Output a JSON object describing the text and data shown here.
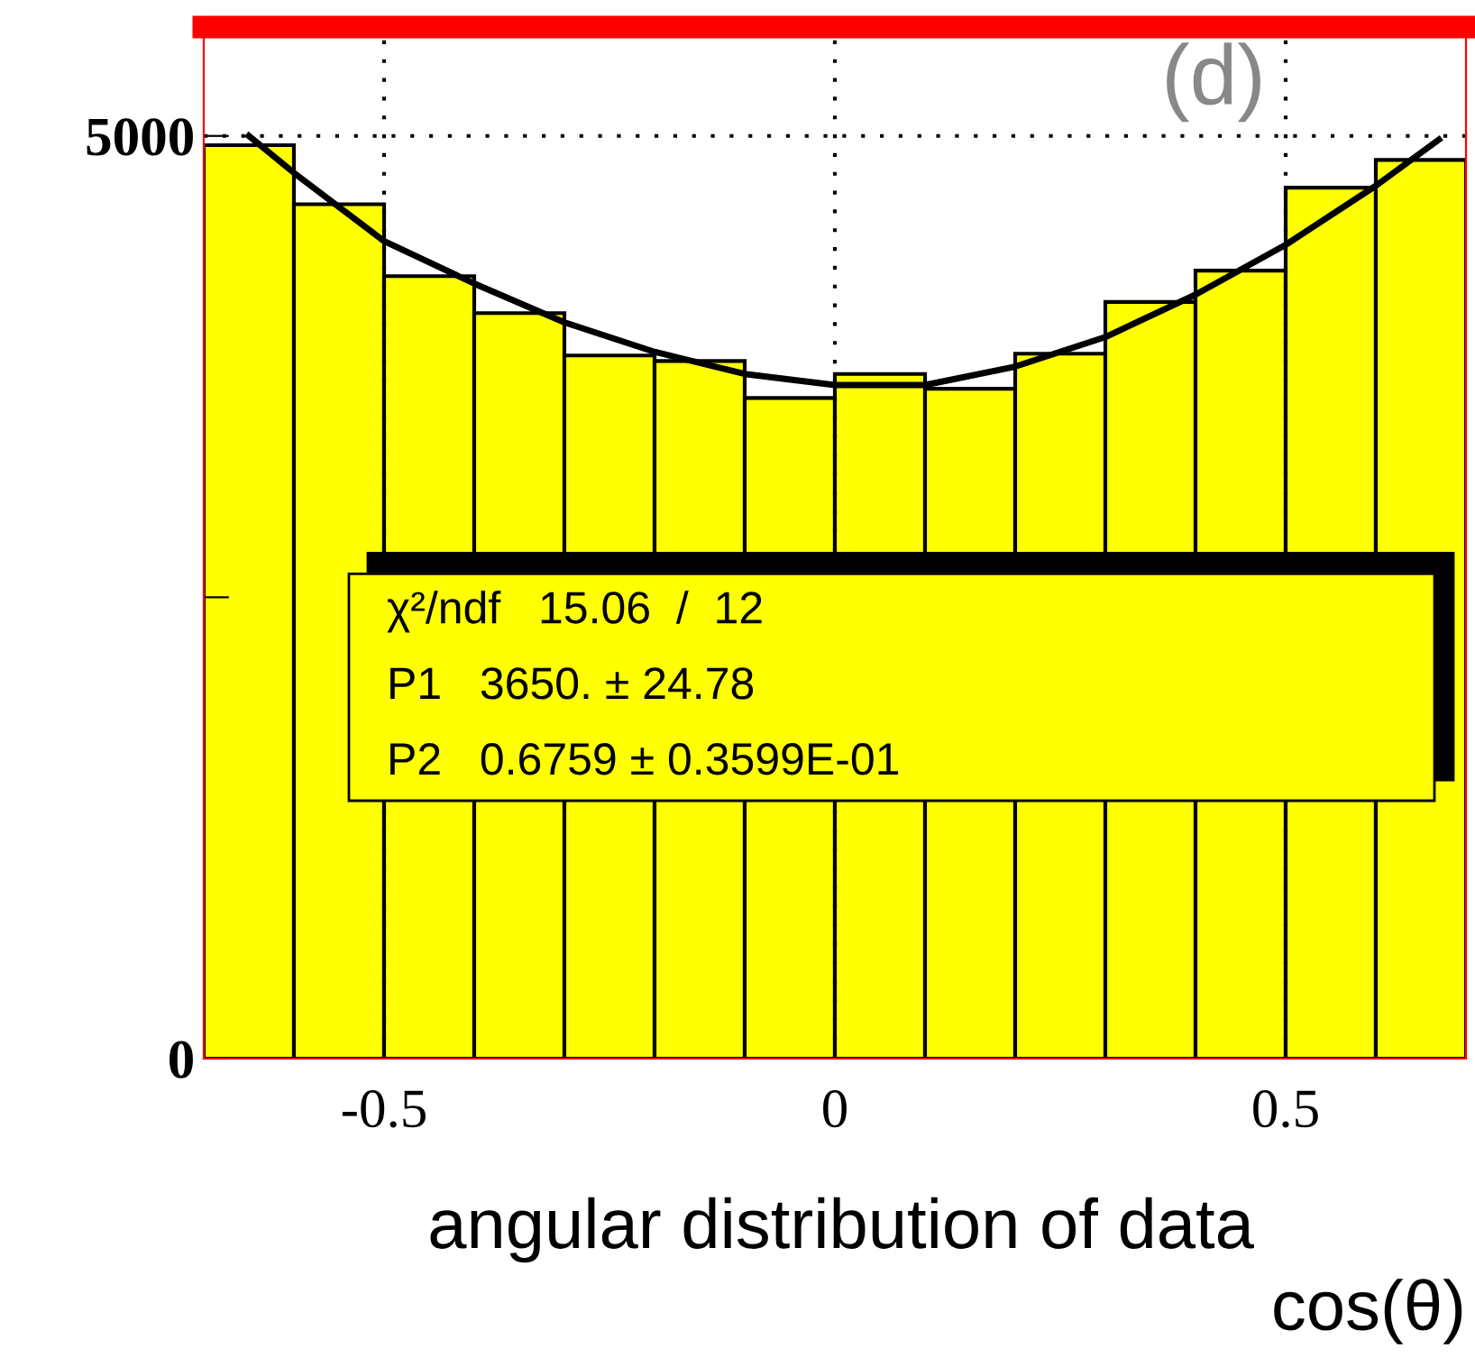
{
  "chart_data": {
    "type": "histogram",
    "xlabel": "cos(θ)",
    "series": [
      {
        "type": "histogram",
        "color": "#ffff00",
        "bins": [
          -0.7,
          -0.6,
          -0.5,
          -0.4,
          -0.3,
          -0.2,
          -0.1,
          0,
          0.1,
          0.2,
          0.3,
          0.4,
          0.5,
          0.6,
          0.7
        ],
        "values": [
          4950,
          4630,
          4240,
          4040,
          3810,
          3780,
          3580,
          3710,
          3630,
          3820,
          4100,
          4270,
          4720,
          4870
        ]
      },
      {
        "type": "line",
        "color": "#000000",
        "x": [
          -0.65,
          -0.6,
          -0.5,
          -0.4,
          -0.3,
          -0.2,
          -0.1,
          0,
          0.1,
          0.2,
          0.3,
          0.4,
          0.5,
          0.6,
          0.67
        ],
        "values": [
          5000,
          4800,
          4430,
          4200,
          3990,
          3830,
          3710,
          3650,
          3650,
          3750,
          3910,
          4140,
          4410,
          4730,
          4980
        ]
      }
    ],
    "xlim": [
      -0.7,
      0.7
    ],
    "ylim": [
      0,
      5590
    ],
    "xticks": [
      {
        "value": -0.6,
        "label": null
      },
      -0.5,
      {
        "value": -0.4,
        "label": null
      },
      {
        "value": -0.3,
        "label": null
      },
      {
        "value": -0.2,
        "label": null
      },
      {
        "value": -0.1,
        "label": null
      },
      0,
      {
        "value": 0.1,
        "label": null
      },
      {
        "value": 0.2,
        "label": null
      },
      {
        "value": 0.3,
        "label": null
      },
      {
        "value": 0.4,
        "label": null
      },
      0.5,
      {
        "value": 0.6,
        "label": null
      }
    ],
    "yticks": [
      0,
      {
        "value": 2500,
        "label": null
      },
      5000
    ],
    "grid": true,
    "annotations": [
      "(d)",
      "χ²/ndf   15.06  /  12",
      "P1   3650. ± 24.78",
      "P2   0.6759 ± 0.3599E-01",
      "angular distribution of data"
    ]
  }
}
